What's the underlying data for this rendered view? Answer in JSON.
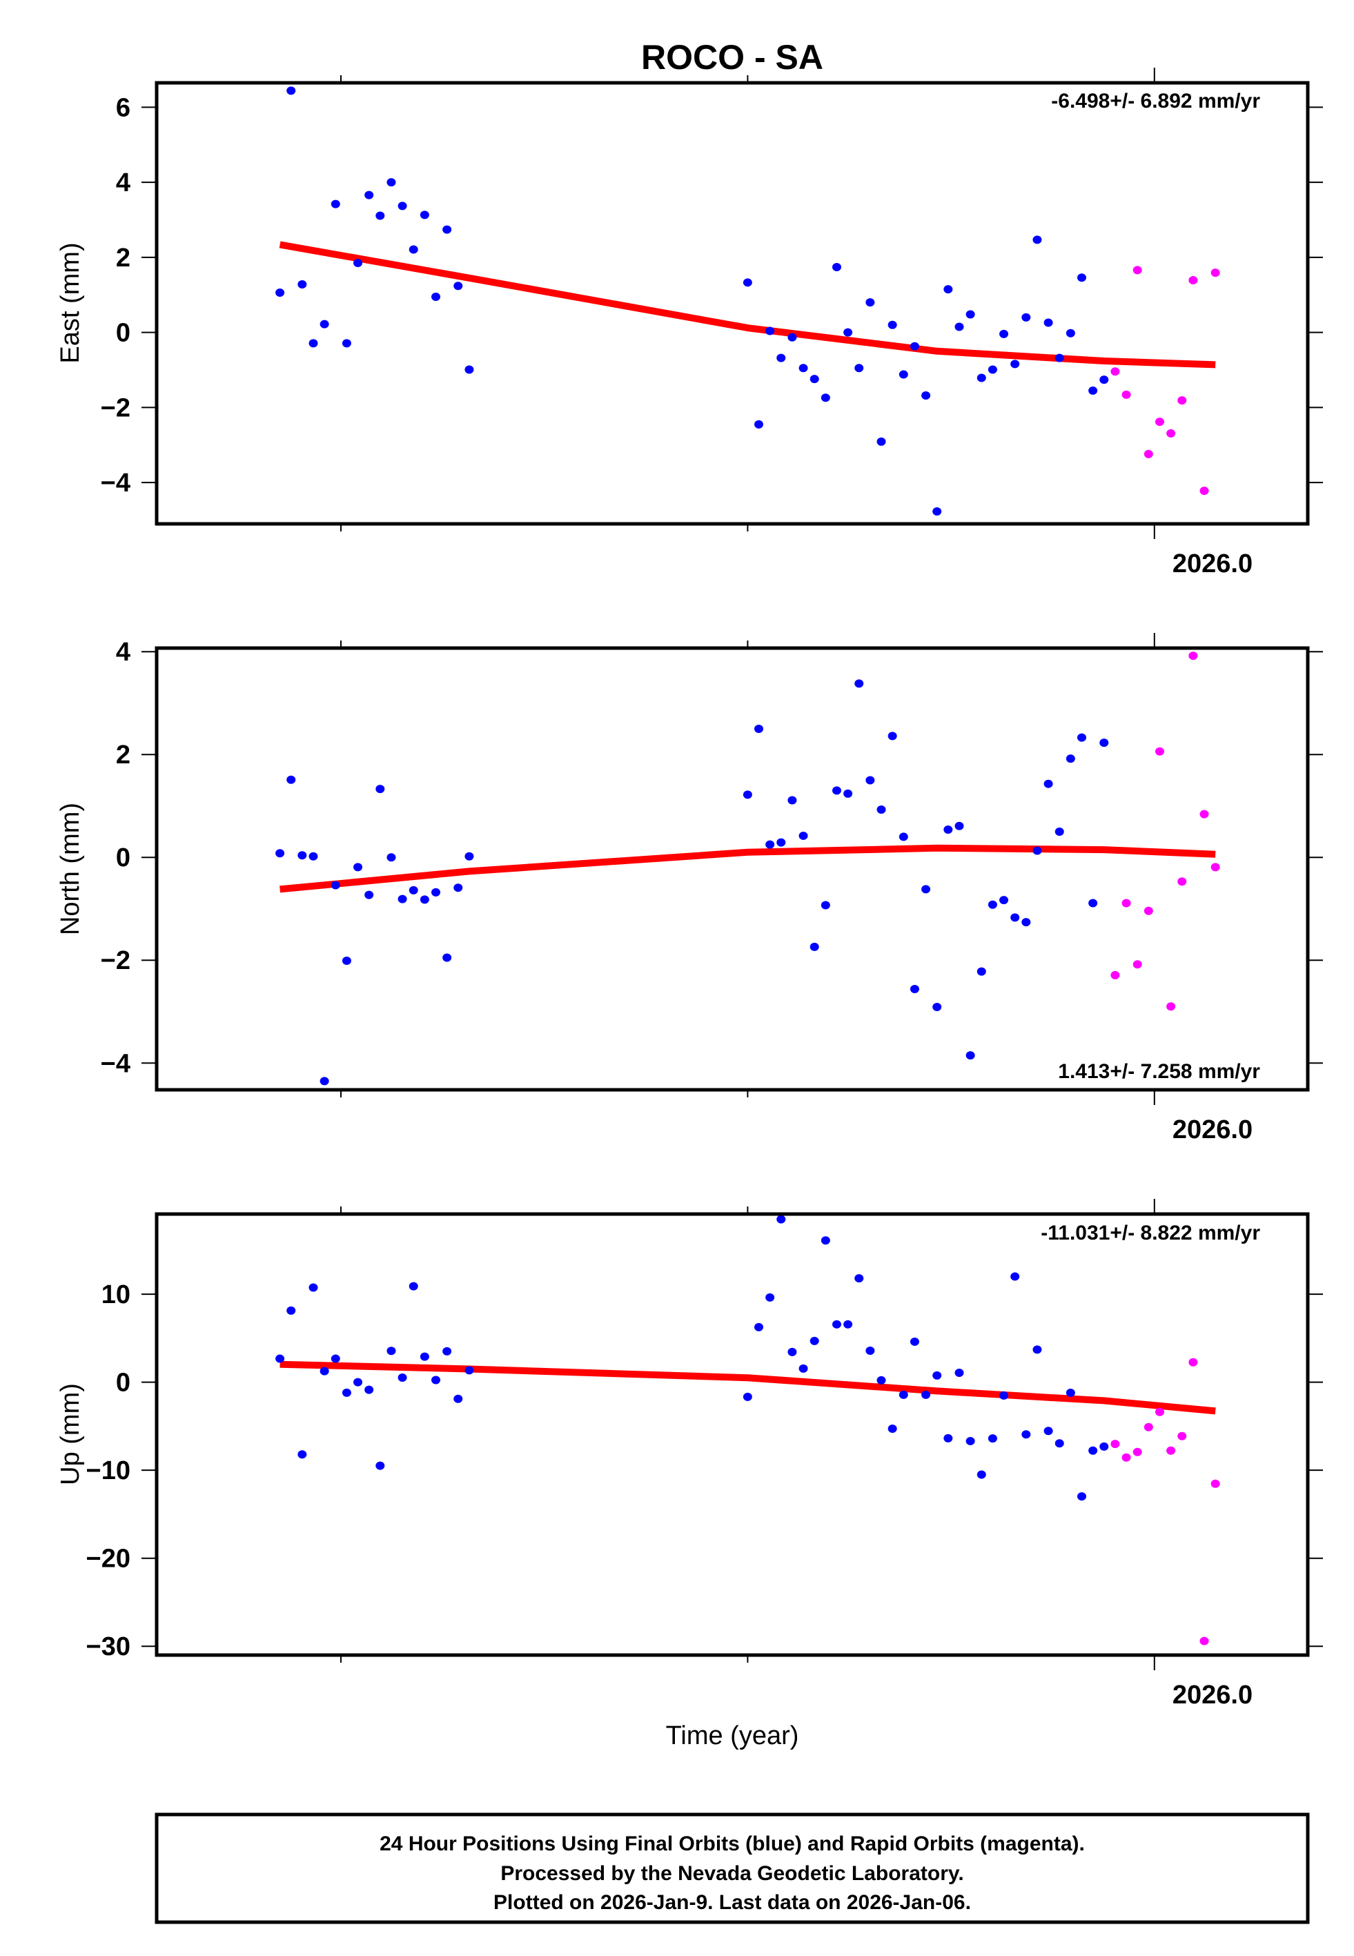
{
  "chart_data": {
    "title": "ROCO - SA",
    "xlabel": "Time (year)",
    "x_tick_labels": [
      {
        "value": 2026.0,
        "label": "2026.0"
      }
    ],
    "x_minor_ticks": [
      2025.8,
      2025.9,
      2026.0
    ],
    "xlim": [
      2025.7547,
      2026.0377
    ],
    "legend_note": "24 Hour Positions Using Final Orbits (blue) and Rapid Orbits (magenta).",
    "caption": [
      "24 Hour Positions Using Final Orbits (blue) and Rapid Orbits (magenta).",
      "Processed by the Nevada Geodetic Laboratory.",
      "Plotted on 2026-Jan-9. Last data on 2026-Jan-06."
    ],
    "colors": {
      "final": "#0000ff",
      "rapid": "#ff00ff",
      "trend": "#ff0000",
      "frame": "#000000"
    },
    "time_start": 2025.785,
    "day_step": 0.002738,
    "final_days": [
      0,
      1,
      2,
      3,
      4,
      5,
      6,
      7,
      8,
      9,
      10,
      11,
      12,
      13,
      14,
      15,
      16,
      17,
      42,
      43,
      44,
      45,
      46,
      47,
      48,
      49,
      50,
      51,
      52,
      53,
      54,
      55,
      56,
      57,
      58,
      59,
      60,
      61,
      62,
      63,
      64,
      65,
      66,
      67,
      68,
      69,
      70,
      71,
      72,
      73,
      74
    ],
    "rapid_days": [
      75,
      76,
      77,
      78,
      79,
      80,
      81,
      82,
      83,
      84
    ],
    "trend_days": [
      0,
      17,
      42,
      59,
      74,
      84
    ],
    "panels": [
      {
        "name": "east",
        "type": "scatter",
        "ylabel": "East (mm)",
        "ylim": [
          -5.1,
          6.65
        ],
        "yticks": [
          6,
          4,
          2,
          0,
          -2,
          -4
        ],
        "ytick_labels": [
          "6",
          "4",
          "2",
          "0",
          "−2",
          "−4"
        ],
        "rate_text": "-6.498+/- 6.892 mm/yr",
        "rate_position": "top-right",
        "final": [
          1.06,
          6.44,
          1.28,
          -0.29,
          0.22,
          3.42,
          -0.29,
          1.85,
          3.66,
          3.11,
          4.0,
          3.37,
          2.21,
          3.13,
          0.95,
          2.74,
          1.24,
          -0.99,
          1.33,
          -2.45,
          0.04,
          -0.68,
          -0.13,
          -0.95,
          -1.24,
          -1.74,
          1.74,
          0.0,
          -0.95,
          0.8,
          -2.91,
          0.2,
          -1.12,
          -0.37,
          -1.68,
          -4.77,
          1.15,
          0.15,
          0.48,
          -1.21,
          -0.99,
          -0.04,
          -0.84,
          0.4,
          2.47,
          0.26,
          -0.68,
          -0.02,
          1.46,
          -1.55,
          -1.26
        ],
        "rapid": [
          -1.04,
          -1.66,
          1.66,
          -3.24,
          -2.38,
          -2.69,
          -1.81,
          1.39,
          -4.22,
          1.59
        ],
        "trend": [
          2.34,
          1.45,
          0.12,
          -0.5,
          -0.76,
          -0.86
        ]
      },
      {
        "name": "north",
        "type": "scatter",
        "ylabel": "North (mm)",
        "ylim": [
          -4.52,
          4.07
        ],
        "yticks": [
          4,
          2,
          0,
          -2,
          -4
        ],
        "ytick_labels": [
          "4",
          "2",
          "0",
          "−2",
          "−4"
        ],
        "rate_text": "1.413+/- 7.258 mm/yr",
        "rate_position": "bottom-right",
        "final": [
          0.08,
          1.51,
          0.04,
          0.02,
          -4.35,
          -0.54,
          -2.01,
          -0.19,
          -0.73,
          1.33,
          0.0,
          -0.81,
          -0.64,
          -0.82,
          -0.68,
          -1.95,
          -0.59,
          0.02,
          1.22,
          2.5,
          0.25,
          0.29,
          1.11,
          0.42,
          -1.74,
          -0.93,
          1.3,
          1.24,
          3.38,
          1.5,
          0.93,
          2.36,
          0.4,
          -2.56,
          -0.62,
          -2.91,
          0.54,
          0.61,
          -3.85,
          -2.22,
          -0.92,
          -0.83,
          -1.17,
          -1.26,
          0.13,
          1.43,
          0.5,
          1.92,
          2.33,
          -0.89,
          2.23
        ],
        "rapid": [
          -2.29,
          -0.89,
          -2.08,
          -1.04,
          2.06,
          -2.9,
          -0.47,
          3.92,
          0.84,
          -0.19
        ],
        "trend": [
          -0.62,
          -0.27,
          0.1,
          0.18,
          0.15,
          0.06
        ]
      },
      {
        "name": "up",
        "type": "scatter",
        "ylabel": "Up (mm)",
        "ylim": [
          -31.0,
          19.1
        ],
        "yticks": [
          10,
          0,
          -10,
          -20,
          -30
        ],
        "ytick_labels": [
          "10",
          "0",
          "−10",
          "−20",
          "−30"
        ],
        "rate_text": "-11.031+/- 8.822 mm/yr",
        "rate_position": "top-right",
        "final": [
          2.67,
          8.13,
          -8.2,
          10.75,
          1.25,
          2.67,
          -1.2,
          0.0,
          -0.86,
          -9.49,
          3.56,
          0.52,
          10.9,
          2.9,
          0.24,
          3.51,
          -1.89,
          1.35,
          -1.67,
          6.25,
          9.62,
          18.5,
          3.43,
          1.55,
          4.68,
          16.1,
          6.57,
          6.57,
          11.8,
          3.58,
          0.21,
          -5.28,
          -1.43,
          4.6,
          -1.43,
          0.76,
          -6.37,
          1.07,
          -6.69,
          -10.5,
          -6.39,
          -1.51,
          12.0,
          -5.93,
          3.7,
          -5.54,
          -6.95,
          -1.21,
          -12.98,
          -7.77,
          -7.31
        ],
        "rapid": [
          -7.02,
          -8.56,
          -7.93,
          -5.11,
          -3.38,
          -7.77,
          -6.13,
          2.26,
          -29.4,
          -11.54
        ],
        "trend": [
          2.03,
          1.5,
          0.5,
          -1.0,
          -2.1,
          -3.28
        ]
      }
    ]
  }
}
